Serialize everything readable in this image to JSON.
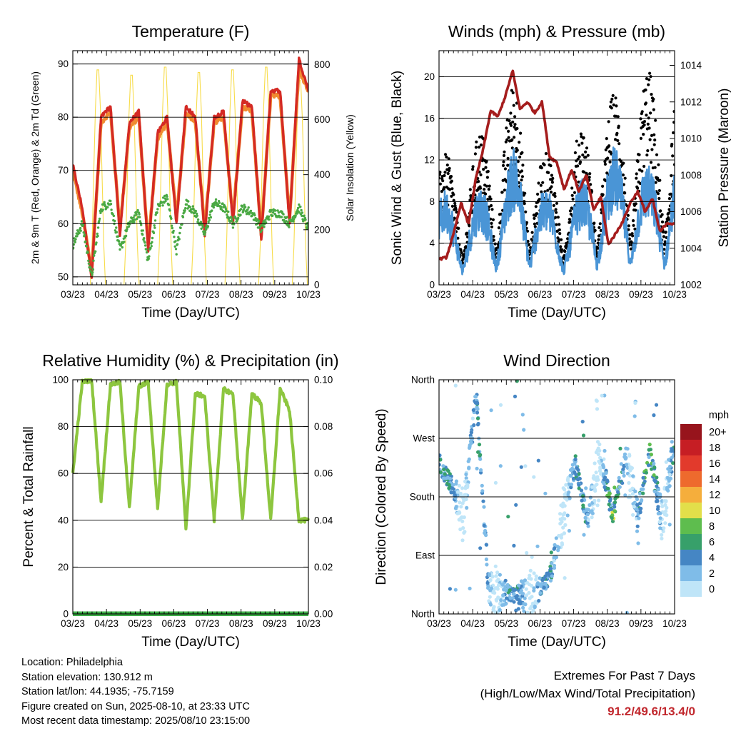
{
  "chart_data": [
    {
      "type": "line",
      "title": "Temperature (F)",
      "xlabel": "Time (Day/UTC)",
      "ylabel": "2m & 9m T (Red, Orange) & 2m Td (Green)",
      "ylabel_right": "Solar Insolation (Yellow)",
      "x_ticks": [
        "03/23",
        "04/23",
        "05/23",
        "06/23",
        "07/23",
        "08/23",
        "09/23",
        "10/23"
      ],
      "ylim": [
        48.5,
        92.5
      ],
      "y_ticks": [
        50,
        60,
        70,
        80,
        90
      ],
      "ylim_right": [
        0,
        850
      ],
      "y_ticks_right": [
        0,
        200,
        400,
        600,
        800
      ],
      "grid": "horizontal",
      "colors": {
        "t2m": "#d42a24",
        "t9m": "#f08a30",
        "td": "#49a843",
        "solar": "#f7dc4a"
      },
      "series": [
        {
          "key": "t2m",
          "values": [
            71,
            63,
            50,
            80,
            82,
            58,
            79,
            81,
            55,
            77,
            80,
            60,
            82,
            80,
            58,
            80,
            81,
            60,
            83,
            82,
            57,
            85,
            85,
            60,
            91,
            85
          ]
        },
        {
          "key": "t9m",
          "values": [
            70,
            62,
            51,
            79,
            81,
            59,
            78,
            80,
            56,
            76,
            79,
            61,
            81,
            79,
            59,
            79,
            80,
            61,
            82,
            81,
            58,
            84,
            84,
            61,
            89,
            85
          ]
        },
        {
          "key": "td",
          "values": [
            56,
            60,
            50,
            63,
            64,
            55,
            60,
            62,
            53,
            63,
            65,
            55,
            64,
            62,
            58,
            64,
            63,
            60,
            63,
            62,
            59,
            62,
            62,
            60,
            63,
            59
          ]
        },
        {
          "key": "solar",
          "peaks": [
            0,
            800,
            780,
            810,
            790,
            800,
            810,
            760,
            820
          ]
        }
      ]
    },
    {
      "type": "scatter",
      "title": "Winds (mph) & Pressure (mb)",
      "xlabel": "Time (Day/UTC)",
      "ylabel": "Sonic Wind & Gust (Blue, Black)",
      "ylabel_right": "Station Pressure (Maroon)",
      "x_ticks": [
        "03/23",
        "04/23",
        "05/23",
        "06/23",
        "07/23",
        "08/23",
        "09/23",
        "10/23"
      ],
      "ylim": [
        0,
        22.5
      ],
      "y_ticks": [
        0,
        4,
        8,
        12,
        16,
        20
      ],
      "ylim_right": [
        1002,
        1014.8
      ],
      "y_ticks_right": [
        1002,
        1004,
        1006,
        1008,
        1010,
        1012,
        1014
      ],
      "grid": "horizontal",
      "colors": {
        "wind": "#4a95d6",
        "gust": "#000000",
        "pressure": "#a51d1d"
      },
      "pressure": [
        1003.4,
        1003.5,
        1004.8,
        1006.5,
        1005.3,
        1007.8,
        1009.4,
        1011.5,
        1011.2,
        1012.3,
        1013.7,
        1011.6,
        1012.0,
        1011.4,
        1012.0,
        1009.0,
        1008.7,
        1007.2,
        1008.3,
        1007.1,
        1008.0,
        1006.1,
        1006.8,
        1004.2,
        1004.8,
        1005.5,
        1006.5,
        1007.1,
        1006.0,
        1006.7,
        1004.9,
        1005.4,
        1005.3
      ],
      "wind_peaks": [
        9,
        8,
        10,
        13,
        9,
        8,
        12,
        13,
        11,
        13
      ],
      "gust_peaks": [
        12,
        12,
        16,
        19,
        12,
        13,
        17,
        18,
        20,
        20
      ]
    },
    {
      "type": "line",
      "title": "Relative Humidity (%) & Precipitation (in)",
      "xlabel": "Time (Day/UTC)",
      "ylabel": "Percent & Total Rainfall",
      "x_ticks": [
        "03/23",
        "04/23",
        "05/23",
        "06/23",
        "07/23",
        "08/23",
        "09/23",
        "10/23"
      ],
      "ylim": [
        0,
        100
      ],
      "y_ticks": [
        0,
        20,
        40,
        60,
        80,
        100
      ],
      "ylim_right": [
        0,
        0.1
      ],
      "y_ticks_right": [
        "0.00",
        "0.02",
        "0.04",
        "0.06",
        "0.08",
        "0.10"
      ],
      "grid": "horizontal",
      "colors": {
        "rh": "#8dc63f",
        "precip": "#3fae49"
      },
      "series": [
        {
          "key": "rh",
          "values": [
            60,
            99,
            100,
            48,
            98,
            99,
            45,
            97,
            99,
            45,
            98,
            99,
            36,
            94,
            93,
            40,
            96,
            94,
            40,
            94,
            90,
            40,
            96,
            87,
            40,
            40
          ]
        },
        {
          "key": "precip",
          "values": [
            0,
            0
          ]
        }
      ]
    },
    {
      "type": "scatter",
      "title": "Wind Direction",
      "xlabel": "Time (Day/UTC)",
      "ylabel": "Direction (Colored By Speed)",
      "x_ticks": [
        "03/23",
        "04/23",
        "05/23",
        "06/23",
        "07/23",
        "08/23",
        "09/23",
        "10/23"
      ],
      "y_ticks": [
        "North",
        "East",
        "South",
        "West",
        "North"
      ],
      "grid": "horizontal",
      "legend": {
        "title": "mph",
        "labels": [
          "0",
          "2",
          "4",
          "6",
          "8",
          "10",
          "12",
          "14",
          "16",
          "18",
          "20+"
        ],
        "colors": [
          "#bfe5f8",
          "#7fbce8",
          "#4586c4",
          "#37a06a",
          "#5ebd4e",
          "#e2df4a",
          "#f5ae3c",
          "#ee6a2d",
          "#e23a2c",
          "#c61e24",
          "#97141c"
        ]
      }
    }
  ],
  "info": {
    "location": "Location: Philadelphia",
    "elevation": "Station elevation: 130.912 m",
    "latlon": "Station lat/lon: 44.1935; -75.7159",
    "created": "Figure created on Sun, 2025-08-10, at 23:33 UTC",
    "latest": "Most recent data timestamp: 2025/08/10 23:15:00"
  },
  "extremes": {
    "title": "Extremes For Past 7 Days",
    "subtitle": "(High/Low/Max Wind/Total Precipitation)",
    "values": "91.2/49.6/13.4/0"
  }
}
